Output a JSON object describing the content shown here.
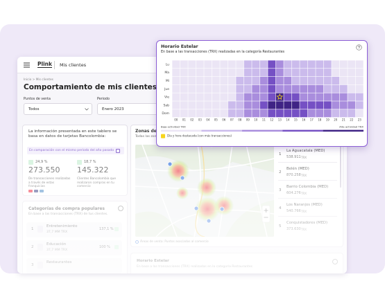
{
  "header": {
    "logo": "Plink",
    "section": "Mis clientes"
  },
  "breadcrumb": "Inicio > Mis clientes",
  "title": "Comportamiento de mis clientes",
  "filters": [
    {
      "label": "Puntos de venta",
      "value": "Todos"
    },
    {
      "label": "Periodo",
      "value": "Enero 2023"
    }
  ],
  "info": {
    "text": "La información presentada en este tablero se basa en datos de tarjetas Bancolombia:",
    "comparison": "En comparación con el mismo periodo del año pasado",
    "metrics": [
      {
        "change": "24,9 %",
        "value": "273.550",
        "description": "De transacciones realizadas a través de estas franquicias"
      },
      {
        "change": "18,7 %",
        "value": "145.322",
        "description": "Clientes Bancolombia que realizaron compras en tu comercio"
      }
    ]
  },
  "categories": {
    "title": "Categorías de compra populares",
    "subtitle": "En base a las transacciones (TRX) de tus clientes.",
    "items": [
      {
        "rank": "1",
        "name": "Entretenimiento",
        "trx": "37,7 MM",
        "unit": "TRX",
        "change": "137,1 %"
      },
      {
        "rank": "2",
        "name": "Educación",
        "trx": "37,7 MM",
        "unit": "TRX",
        "change": "100 %"
      },
      {
        "rank": "3",
        "name": "Restaurantes"
      }
    ]
  },
  "zones": {
    "title": "Zonas desta",
    "subtitle": "Todas las zon",
    "items": [
      {
        "rank": "1",
        "name": "La Aguacatala (MED)",
        "value": "538.911",
        "unit": "TRX"
      },
      {
        "rank": "2",
        "name": "Belén (MED)",
        "value": "870.258",
        "unit": "TRX"
      },
      {
        "rank": "3",
        "name": "Barrio Colombia (MED)",
        "value": "604.276",
        "unit": "TRX"
      },
      {
        "rank": "4",
        "name": "Los Naranjos (MED)",
        "value": "540.766",
        "unit": "TRX"
      },
      {
        "rank": "5",
        "name": "Conquistadores (MED)",
        "value": "373.630",
        "unit": "TRX"
      }
    ],
    "note": "Áreas de venta: Puntos asociados al comercio"
  },
  "bottom_card": {
    "title": "Horario Estelar",
    "subtitle": "En base a las transacciones (TRX) realizadas en la categoría Restaurantes"
  },
  "popup": {
    "title": "Horario Estelar",
    "subtitle": "En base a las transacciones (TRX) realizadas en la categoría Restaurantes",
    "rows": [
      "Lu",
      "Ma",
      "Mi",
      "Jue",
      "Vie",
      "Sab",
      "Dom"
    ],
    "columns": [
      "00",
      "01",
      "02",
      "03",
      "04",
      "05",
      "06",
      "07",
      "08",
      "09",
      "10",
      "11",
      "12",
      "13",
      "14",
      "15",
      "16",
      "17",
      "18",
      "19",
      "20",
      "21",
      "22",
      "23"
    ],
    "levels": [
      [
        0,
        0,
        0,
        0,
        0,
        0,
        0,
        0,
        0,
        1,
        1,
        1,
        3,
        2,
        1,
        1,
        1,
        1,
        1,
        1,
        0,
        0,
        0,
        0
      ],
      [
        0,
        0,
        0,
        0,
        0,
        0,
        0,
        0,
        0,
        1,
        1,
        1,
        3,
        2,
        1,
        1,
        1,
        1,
        1,
        1,
        0,
        0,
        0,
        0
      ],
      [
        0,
        0,
        0,
        0,
        0,
        0,
        0,
        0,
        1,
        1,
        1,
        2,
        3,
        2,
        2,
        1,
        1,
        1,
        1,
        1,
        1,
        0,
        0,
        0
      ],
      [
        0,
        0,
        0,
        0,
        0,
        0,
        0,
        0,
        1,
        1,
        2,
        2,
        3,
        2,
        2,
        2,
        2,
        2,
        2,
        1,
        1,
        1,
        0,
        0
      ],
      [
        0,
        0,
        0,
        0,
        0,
        0,
        0,
        0,
        1,
        2,
        2,
        2,
        3,
        4,
        3,
        3,
        2,
        2,
        2,
        2,
        2,
        2,
        1,
        1
      ],
      [
        0,
        0,
        0,
        0,
        0,
        0,
        0,
        1,
        1,
        2,
        2,
        3,
        4,
        4,
        4,
        4,
        3,
        3,
        3,
        3,
        2,
        2,
        2,
        1
      ],
      [
        0,
        0,
        0,
        0,
        0,
        0,
        0,
        1,
        1,
        2,
        2,
        2,
        3,
        3,
        3,
        3,
        3,
        2,
        2,
        2,
        1,
        1,
        1,
        0
      ]
    ],
    "palette": [
      "#ebe5f5",
      "#cbbbec",
      "#a98ddd",
      "#7550c4",
      "#3f2385"
    ],
    "highlight": {
      "row": 4,
      "column": 13,
      "color": "#f7d51e"
    },
    "legend": {
      "low": "Baja actividad TRX",
      "high": "Alta actividad TRX"
    },
    "highlight_note": "Día y hora destacada (con más transacciones)"
  }
}
